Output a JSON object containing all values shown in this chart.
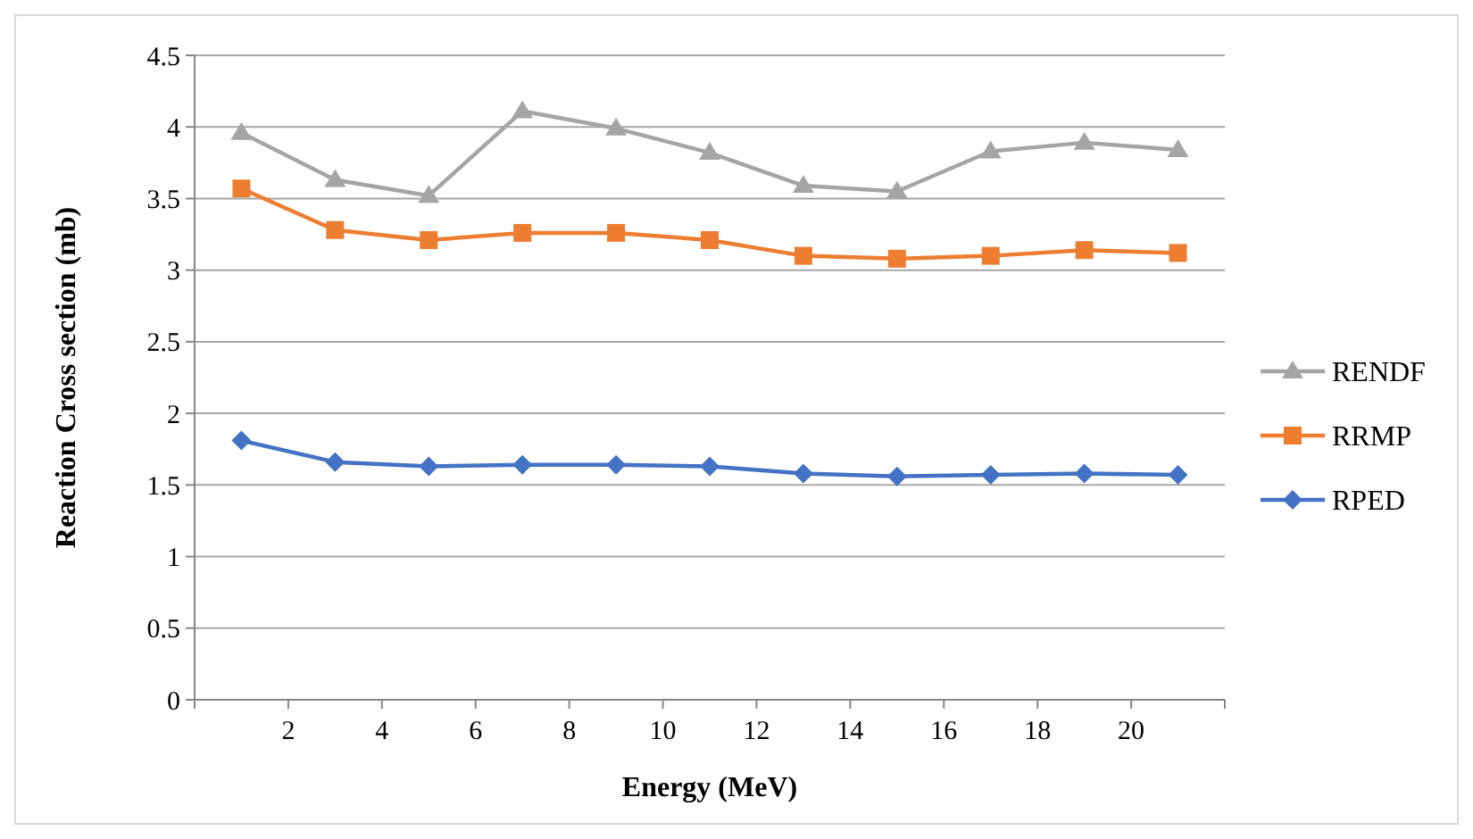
{
  "chart_data": {
    "type": "line",
    "xlabel": "Energy (MeV)",
    "ylabel": "Reaction Cross section (mb)",
    "x": [
      1,
      3,
      5,
      7,
      9,
      11,
      13,
      15,
      17,
      19,
      21
    ],
    "xlim": [
      0,
      22
    ],
    "xticks": [
      {
        "value": 0,
        "label": null
      },
      2,
      4,
      6,
      8,
      10,
      12,
      14,
      16,
      18,
      20,
      {
        "value": 22,
        "label": null
      }
    ],
    "ylim": [
      0,
      4.5
    ],
    "yticks": [
      0,
      0.5,
      1,
      1.5,
      2,
      2.5,
      3,
      3.5,
      4,
      4.5
    ],
    "grid": "y",
    "legend": "right",
    "series": [
      {
        "name": "RENDF",
        "color": "#a5a5a5",
        "marker": "triangle",
        "values": [
          3.96,
          3.63,
          3.52,
          4.11,
          3.99,
          3.82,
          3.59,
          3.55,
          3.83,
          3.89,
          3.84
        ]
      },
      {
        "name": "RRMP",
        "color": "#ed7d31",
        "marker": "square",
        "values": [
          3.57,
          3.28,
          3.21,
          3.26,
          3.26,
          3.21,
          3.1,
          3.08,
          3.1,
          3.14,
          3.12
        ]
      },
      {
        "name": "RPED",
        "color": "#4472c4",
        "marker": "diamond",
        "values": [
          1.81,
          1.66,
          1.63,
          1.64,
          1.64,
          1.63,
          1.58,
          1.56,
          1.57,
          1.58,
          1.57
        ]
      }
    ]
  }
}
